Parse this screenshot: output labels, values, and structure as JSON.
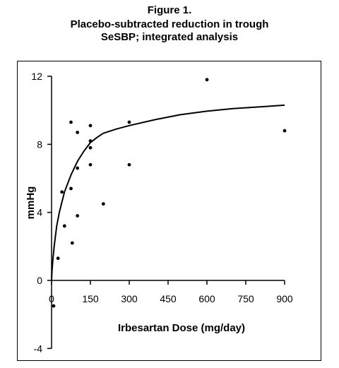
{
  "title_lines": [
    "Figure 1.",
    "Placebo-subtracted reduction in trough",
    "SeSBP; integrated analysis"
  ],
  "chart_data": {
    "type": "scatter",
    "xlabel": "Irbesartan Dose (mg/day)",
    "ylabel": "mmHg",
    "xlim": [
      0,
      900
    ],
    "ylim": [
      -4,
      12
    ],
    "x_ticks": [
      0,
      150,
      300,
      450,
      600,
      750,
      900
    ],
    "y_ticks": [
      -4,
      0,
      4,
      8,
      12
    ],
    "x_tick_labels": [
      "0",
      "150",
      "300",
      "450",
      "600",
      "750",
      "900"
    ],
    "y_tick_labels": [
      "-4",
      "0",
      "4",
      "8",
      "12"
    ],
    "points": [
      {
        "x": 8,
        "y": -1.5
      },
      {
        "x": 25,
        "y": 1.3
      },
      {
        "x": 40,
        "y": 5.2
      },
      {
        "x": 50,
        "y": 3.2
      },
      {
        "x": 75,
        "y": 5.4
      },
      {
        "x": 75,
        "y": 9.3
      },
      {
        "x": 80,
        "y": 2.2
      },
      {
        "x": 100,
        "y": 8.7
      },
      {
        "x": 100,
        "y": 6.6
      },
      {
        "x": 100,
        "y": 3.8
      },
      {
        "x": 150,
        "y": 9.1
      },
      {
        "x": 150,
        "y": 8.2
      },
      {
        "x": 150,
        "y": 7.8
      },
      {
        "x": 150,
        "y": 6.8
      },
      {
        "x": 200,
        "y": 4.5
      },
      {
        "x": 300,
        "y": 9.3
      },
      {
        "x": 300,
        "y": 6.8
      },
      {
        "x": 600,
        "y": 11.8
      },
      {
        "x": 900,
        "y": 8.8
      }
    ],
    "fit_curve": {
      "x": [
        0,
        2,
        5,
        10,
        20,
        30,
        50,
        75,
        100,
        125,
        150,
        175,
        200,
        250,
        300,
        400,
        500,
        600,
        700,
        800,
        900
      ],
      "y": [
        0,
        0.6,
        1.2,
        2.0,
        3.2,
        4.0,
        5.2,
        6.2,
        7.0,
        7.6,
        8.1,
        8.4,
        8.65,
        8.9,
        9.1,
        9.45,
        9.75,
        9.95,
        10.1,
        10.2,
        10.3
      ]
    },
    "grid": false,
    "legend": "none",
    "colors": {
      "marks": "#000000",
      "background": "#ffffff"
    }
  }
}
